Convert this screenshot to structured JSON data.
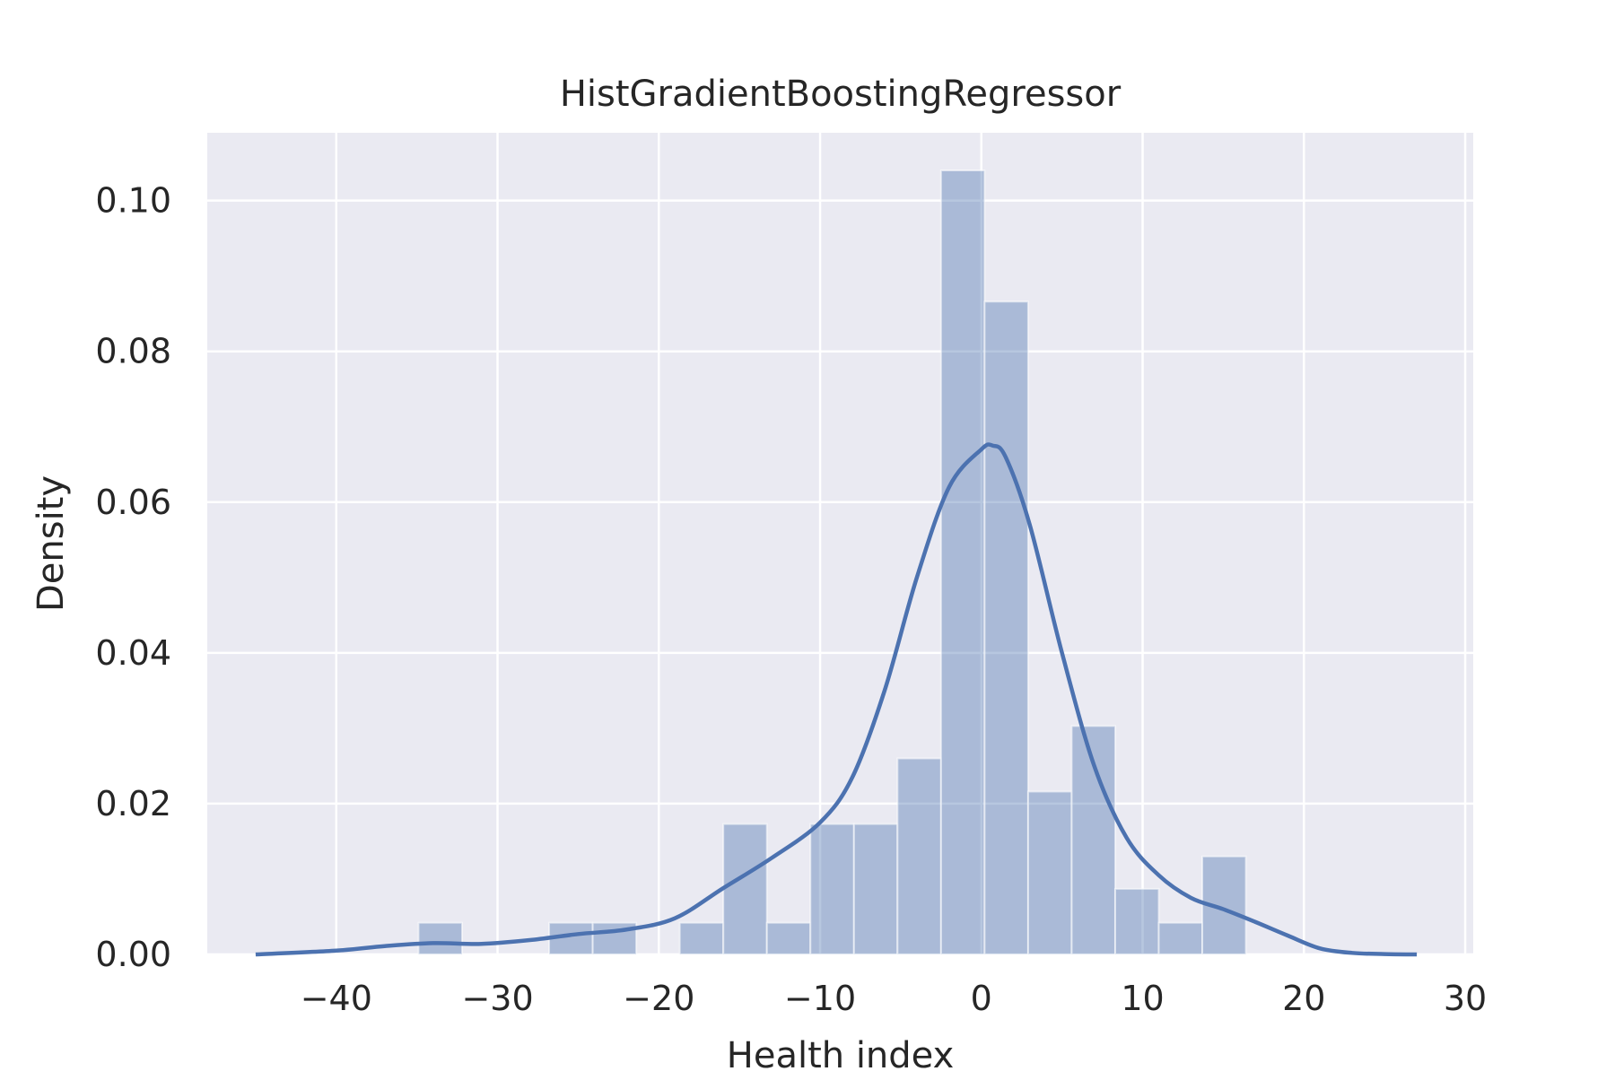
{
  "chart_data": {
    "type": "bar",
    "title": "HistGradientBoostingRegressor",
    "xlabel": "Health index",
    "ylabel": "Density",
    "xlim": [
      -48,
      30.5
    ],
    "ylim": [
      0,
      0.109
    ],
    "xticks": [
      -40,
      -30,
      -20,
      -10,
      0,
      10,
      20,
      30
    ],
    "yticks": [
      0.0,
      0.02,
      0.04,
      0.06,
      0.08,
      0.1
    ],
    "xtick_labels": [
      "−40",
      "−30",
      "−20",
      "−10",
      "0",
      "10",
      "20",
      "30"
    ],
    "ytick_labels": [
      "0.00",
      "0.02",
      "0.04",
      "0.06",
      "0.08",
      "0.10"
    ],
    "grid": true,
    "colors": {
      "background": "#EAEAF2",
      "grid": "#FFFFFF",
      "bar_fill": "#4C72B0",
      "bar_opacity": 0.4,
      "kde_line": "#4C72B0"
    },
    "histogram": {
      "bin_edges": [
        -34.9,
        -32.2,
        -29.5,
        -26.8,
        -24.1,
        -21.4,
        -18.7,
        -16.0,
        -13.3,
        -10.6,
        -7.9,
        -5.2,
        -2.5,
        0.2,
        2.9,
        5.6,
        8.3,
        11.0,
        13.7,
        16.4
      ],
      "density": [
        0.0042,
        0,
        0,
        0.0042,
        0.0042,
        0,
        0.0042,
        0.0173,
        0.0042,
        0.0173,
        0.0173,
        0.026,
        0.104,
        0.0866,
        0.0216,
        0.0303,
        0.0087,
        0.0042,
        0.013
      ]
    },
    "kde": {
      "x": [
        -45,
        -40,
        -37,
        -34,
        -31,
        -28,
        -25,
        -22,
        -19,
        -16,
        -13,
        -10,
        -8,
        -6,
        -4,
        -2,
        0,
        0.7,
        1.5,
        3,
        5,
        7,
        9,
        11,
        13,
        15,
        17,
        19,
        21,
        23,
        25,
        27
      ],
      "y": [
        0.0,
        0.0005,
        0.0011,
        0.0015,
        0.0014,
        0.0019,
        0.0027,
        0.0033,
        0.0048,
        0.0088,
        0.0128,
        0.0175,
        0.0235,
        0.035,
        0.05,
        0.062,
        0.067,
        0.0675,
        0.066,
        0.057,
        0.04,
        0.025,
        0.0155,
        0.0105,
        0.0075,
        0.006,
        0.0043,
        0.0025,
        0.0008,
        0.0002,
        5e-05,
        0.0
      ]
    }
  }
}
